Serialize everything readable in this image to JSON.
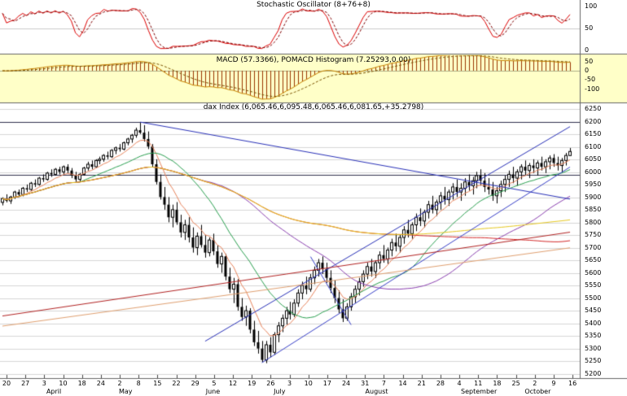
{
  "chart_data": {
    "type": "candlestick",
    "price_panel": {
      "title": "dax Index (6,065.46,6,095.48,6,065.46,6,081.65,+35.2798)",
      "symbol": "dax Index",
      "quote": {
        "open": 6065.46,
        "high": 6095.48,
        "low": 6065.46,
        "close": 6081.65,
        "change": "+35.2798"
      },
      "ylim": [
        5200,
        6250
      ],
      "ytick_step": 50,
      "grid_color": "#d6d6d6",
      "dark_level_color": "#30304d",
      "dark_levels": [
        6200,
        5990
      ],
      "candle_up_fill": "#ffffff",
      "candle_down_fill": "#000000",
      "candle_stroke": "#000000",
      "ohlc": [
        [
          5880,
          5900,
          5868,
          5895
        ],
        [
          5895,
          5912,
          5880,
          5886
        ],
        [
          5886,
          5906,
          5874,
          5901
        ],
        [
          5901,
          5926,
          5894,
          5921
        ],
        [
          5921,
          5931,
          5901,
          5911
        ],
        [
          5911,
          5941,
          5904,
          5936
        ],
        [
          5936,
          5951,
          5921,
          5931
        ],
        [
          5931,
          5961,
          5925,
          5956
        ],
        [
          5956,
          5971,
          5941,
          5951
        ],
        [
          5951,
          5981,
          5946,
          5976
        ],
        [
          5976,
          5991,
          5961,
          5971
        ],
        [
          5971,
          6001,
          5966,
          5996
        ],
        [
          5996,
          6011,
          5981,
          5991
        ],
        [
          5991,
          6016,
          5986,
          6011
        ],
        [
          6011,
          6021,
          5991,
          6001
        ],
        [
          6001,
          6026,
          5991,
          6021
        ],
        [
          6021,
          6031,
          5996,
          6006
        ],
        [
          6006,
          6016,
          5976,
          5986
        ],
        [
          5986,
          6001,
          5961,
          5971
        ],
        [
          5971,
          5996,
          5961,
          5991
        ],
        [
          5991,
          6021,
          5986,
          6016
        ],
        [
          6016,
          6041,
          6006,
          6031
        ],
        [
          6031,
          6046,
          6011,
          6021
        ],
        [
          6021,
          6051,
          6016,
          6046
        ],
        [
          6046,
          6061,
          6031,
          6051
        ],
        [
          6051,
          6071,
          6041,
          6066
        ],
        [
          6066,
          6081,
          6051,
          6061
        ],
        [
          6061,
          6091,
          6056,
          6086
        ],
        [
          6086,
          6101,
          6071,
          6096
        ],
        [
          6096,
          6111,
          6081,
          6091
        ],
        [
          6091,
          6121,
          6086,
          6116
        ],
        [
          6116,
          6136,
          6106,
          6131
        ],
        [
          6131,
          6151,
          6116,
          6146
        ],
        [
          6146,
          6176,
          6136,
          6166
        ],
        [
          6166,
          6196,
          6151,
          6156
        ],
        [
          6156,
          6186,
          6121,
          6131
        ],
        [
          6131,
          6161,
          6091,
          6101
        ],
        [
          6101,
          6111,
          6021,
          6031
        ],
        [
          6031,
          6051,
          5951,
          5961
        ],
        [
          5961,
          5991,
          5891,
          5901
        ],
        [
          5901,
          5941,
          5851,
          5871
        ],
        [
          5871,
          5901,
          5801,
          5821
        ],
        [
          5821,
          5871,
          5781,
          5851
        ],
        [
          5851,
          5881,
          5791,
          5801
        ],
        [
          5801,
          5831,
          5741,
          5761
        ],
        [
          5761,
          5811,
          5731,
          5791
        ],
        [
          5791,
          5821,
          5721,
          5741
        ],
        [
          5741,
          5781,
          5681,
          5701
        ],
        [
          5701,
          5761,
          5671,
          5746
        ],
        [
          5746,
          5791,
          5701,
          5711
        ],
        [
          5711,
          5751,
          5661,
          5681
        ],
        [
          5681,
          5741,
          5666,
          5731
        ],
        [
          5731,
          5756,
          5671,
          5686
        ],
        [
          5686,
          5711,
          5621,
          5636
        ],
        [
          5636,
          5681,
          5601,
          5666
        ],
        [
          5666,
          5676,
          5571,
          5586
        ],
        [
          5586,
          5621,
          5521,
          5536
        ],
        [
          5536,
          5581,
          5481,
          5556
        ],
        [
          5556,
          5576,
          5451,
          5466
        ],
        [
          5466,
          5501,
          5411,
          5426
        ],
        [
          5426,
          5471,
          5391,
          5451
        ],
        [
          5451,
          5461,
          5361,
          5376
        ],
        [
          5376,
          5411,
          5311,
          5326
        ],
        [
          5326,
          5371,
          5281,
          5301
        ],
        [
          5301,
          5331,
          5246,
          5256
        ],
        [
          5256,
          5331,
          5243,
          5316
        ],
        [
          5316,
          5346,
          5266,
          5286
        ],
        [
          5286,
          5366,
          5276,
          5356
        ],
        [
          5356,
          5406,
          5326,
          5391
        ],
        [
          5391,
          5436,
          5366,
          5421
        ],
        [
          5421,
          5466,
          5396,
          5451
        ],
        [
          5451,
          5486,
          5416,
          5436
        ],
        [
          5436,
          5496,
          5426,
          5481
        ],
        [
          5481,
          5536,
          5466,
          5521
        ],
        [
          5521,
          5566,
          5496,
          5551
        ],
        [
          5551,
          5586,
          5516,
          5536
        ],
        [
          5536,
          5596,
          5526,
          5581
        ],
        [
          5581,
          5626,
          5556,
          5611
        ],
        [
          5611,
          5656,
          5586,
          5641
        ],
        [
          5641,
          5666,
          5596,
          5616
        ],
        [
          5616,
          5641,
          5561,
          5581
        ],
        [
          5581,
          5611,
          5521,
          5541
        ],
        [
          5541,
          5571,
          5481,
          5501
        ],
        [
          5501,
          5531,
          5441,
          5456
        ],
        [
          5456,
          5496,
          5406,
          5421
        ],
        [
          5421,
          5481,
          5411,
          5466
        ],
        [
          5466,
          5521,
          5451,
          5506
        ],
        [
          5506,
          5551,
          5481,
          5536
        ],
        [
          5536,
          5581,
          5511,
          5566
        ],
        [
          5566,
          5611,
          5546,
          5596
        ],
        [
          5596,
          5641,
          5576,
          5626
        ],
        [
          5626,
          5656,
          5586,
          5606
        ],
        [
          5606,
          5651,
          5581,
          5641
        ],
        [
          5641,
          5686,
          5616,
          5671
        ],
        [
          5671,
          5711,
          5641,
          5656
        ],
        [
          5656,
          5701,
          5636,
          5691
        ],
        [
          5691,
          5736,
          5666,
          5721
        ],
        [
          5721,
          5756,
          5686,
          5706
        ],
        [
          5706,
          5751,
          5681,
          5741
        ],
        [
          5741,
          5786,
          5716,
          5771
        ],
        [
          5771,
          5811,
          5741,
          5756
        ],
        [
          5756,
          5801,
          5736,
          5791
        ],
        [
          5791,
          5836,
          5766,
          5821
        ],
        [
          5821,
          5856,
          5786,
          5806
        ],
        [
          5806,
          5851,
          5781,
          5841
        ],
        [
          5841,
          5886,
          5816,
          5871
        ],
        [
          5871,
          5906,
          5836,
          5851
        ],
        [
          5851,
          5891,
          5826,
          5881
        ],
        [
          5881,
          5921,
          5851,
          5906
        ],
        [
          5906,
          5941,
          5871,
          5891
        ],
        [
          5891,
          5931,
          5866,
          5921
        ],
        [
          5921,
          5956,
          5891,
          5941
        ],
        [
          5941,
          5971,
          5901,
          5921
        ],
        [
          5921,
          5956,
          5886,
          5936
        ],
        [
          5936,
          5976,
          5906,
          5961
        ],
        [
          5961,
          5991,
          5926,
          5946
        ],
        [
          5946,
          5981,
          5911,
          5966
        ],
        [
          5966,
          6001,
          5936,
          5986
        ],
        [
          5986,
          6011,
          5946,
          5966
        ],
        [
          5966,
          5996,
          5921,
          5941
        ],
        [
          5941,
          5976,
          5911,
          5931
        ],
        [
          5931,
          5961,
          5886,
          5906
        ],
        [
          5906,
          5941,
          5876,
          5926
        ],
        [
          5926,
          5966,
          5901,
          5951
        ],
        [
          5951,
          5986,
          5921,
          5971
        ],
        [
          5971,
          6006,
          5941,
          5991
        ],
        [
          5991,
          6021,
          5956,
          5976
        ],
        [
          5976,
          6011,
          5946,
          6001
        ],
        [
          6001,
          6031,
          5971,
          6021
        ],
        [
          6021,
          6046,
          5986,
          6006
        ],
        [
          6006,
          6036,
          5976,
          6026
        ],
        [
          6026,
          6051,
          5996,
          6016
        ],
        [
          6016,
          6046,
          5986,
          6036
        ],
        [
          6036,
          6061,
          6006,
          6021
        ],
        [
          6021,
          6051,
          5996,
          6041
        ],
        [
          6041,
          6066,
          6011,
          6056
        ],
        [
          6056,
          6071,
          6021,
          6036
        ],
        [
          6036,
          6061,
          6006,
          6026
        ],
        [
          6026,
          6056,
          5996,
          6046
        ],
        [
          6046,
          6076,
          6026,
          6066
        ],
        [
          6065.46,
          6095.48,
          6065.46,
          6081.65
        ]
      ],
      "moving_averages": [
        {
          "name": "ema-8",
          "period": 8,
          "type": "ema",
          "color": "#e8845c"
        },
        {
          "name": "sma-20",
          "period": 20,
          "type": "sma",
          "color": "#2aa050"
        },
        {
          "name": "sma-50",
          "period": 50,
          "type": "sma",
          "color": "#8a3fb0"
        },
        {
          "name": "sma-100",
          "period": 100,
          "type": "sma",
          "color": "#d42a2a"
        },
        {
          "name": "sma-150",
          "period": 150,
          "type": "sma",
          "color": "#e6c81e"
        }
      ],
      "trend_lines": [
        {
          "name": "descending-resistance",
          "color": "#2830b8",
          "from": [
            34,
            6198
          ],
          "to": [
            140,
            5893
          ]
        },
        {
          "name": "ascending-channel-top",
          "color": "#2830b8",
          "from": [
            50,
            5330
          ],
          "to": [
            140,
            6180
          ]
        },
        {
          "name": "ascending-channel-bottom",
          "color": "#3840c8",
          "from": [
            64,
            5245
          ],
          "to": [
            140,
            6020
          ]
        },
        {
          "name": "minor-descending",
          "color": "#3840c8",
          "from": [
            76,
            5665
          ],
          "to": [
            86,
            5395
          ]
        },
        {
          "name": "long-ma-rising",
          "color": "#b22222",
          "from": [
            0,
            5430
          ],
          "to": [
            140,
            5762
          ]
        },
        {
          "name": "long-ma-tan",
          "color": "#e0a070",
          "from": [
            0,
            5390
          ],
          "to": [
            140,
            5700
          ]
        }
      ]
    },
    "stochastic_panel": {
      "title": "Stochastic Oscillator (8+76+8)",
      "ylim": [
        0,
        100
      ],
      "yticks": [
        100,
        50,
        0
      ],
      "k_period": 8,
      "d_period": 3,
      "k_color": "#dd0000",
      "d_color": "#800000"
    },
    "macd_panel": {
      "title": "MACD (57.3366), POMACD Histogram (7.25293,0.00)",
      "current": {
        "macd": 57.3366,
        "histogram": 7.25293,
        "reference": 0.0
      },
      "fast": 12,
      "slow": 26,
      "signal": 9,
      "ylim": [
        -170,
        85
      ],
      "yticks": [
        50,
        0,
        -50,
        -100
      ],
      "background": "#ffffc8",
      "histogram_color": "#993300",
      "macd_color": "#c88400",
      "signal_color": "#7a5200"
    },
    "x_axis": {
      "week_labels": [
        "20",
        "27",
        "3",
        "10",
        "18",
        "24",
        "2",
        "8",
        "15",
        "22",
        "29",
        "5",
        "12",
        "19",
        "26",
        "3",
        "10",
        "17",
        "24",
        "31",
        "7",
        "14",
        "21",
        "28",
        "4",
        "11",
        "18",
        "25",
        "2",
        "9",
        "16"
      ],
      "month_labels": [
        {
          "label": "April",
          "pos": 0.08
        },
        {
          "label": "May",
          "pos": 0.205
        },
        {
          "label": "June",
          "pos": 0.355
        },
        {
          "label": "July",
          "pos": 0.472
        },
        {
          "label": "August",
          "pos": 0.63
        },
        {
          "label": "September",
          "pos": 0.795
        },
        {
          "label": "October",
          "pos": 0.905
        }
      ]
    }
  }
}
